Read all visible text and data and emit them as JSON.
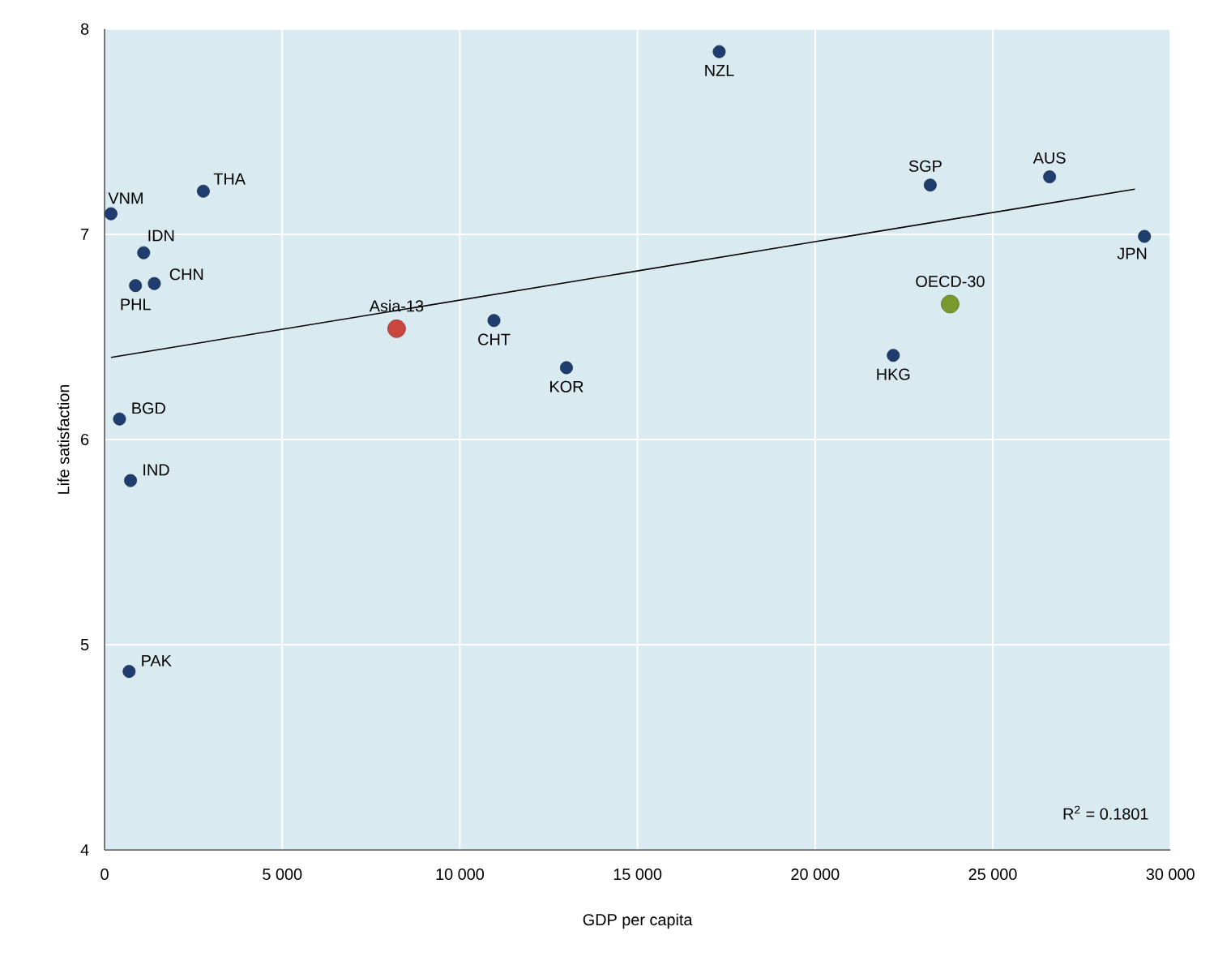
{
  "chart_data": {
    "type": "scatter",
    "xlabel": "GDP per capita",
    "ylabel": "Life satisfaction",
    "xlim": [
      0,
      30000
    ],
    "ylim": [
      4,
      8
    ],
    "xticks": [
      0,
      {
        "value": 5000,
        "label": "5 000"
      },
      {
        "value": 10000,
        "label": "10 000"
      },
      {
        "value": 15000,
        "label": "15 000"
      },
      {
        "value": 20000,
        "label": "20 000"
      },
      {
        "value": 25000,
        "label": "25 000"
      },
      {
        "value": 30000,
        "label": "30 000"
      }
    ],
    "yticks": [
      4,
      5,
      6,
      7,
      8
    ],
    "grid": true,
    "marker": "circle",
    "series": [
      {
        "color": "#1f3d6e",
        "x": [
          180,
          2780,
          1100,
          1400,
          870,
          420,
          730,
          690,
          10960,
          13000,
          17300,
          23240,
          26600,
          29270,
          22200
        ],
        "values": [
          7.1,
          7.21,
          6.91,
          6.76,
          6.75,
          6.1,
          5.8,
          4.87,
          6.58,
          6.35,
          7.89,
          7.24,
          7.28,
          6.99,
          6.41
        ]
      },
      {
        "name": "Asia-13",
        "color": "#c9463f",
        "x": [
          8220
        ],
        "values": [
          6.54
        ]
      },
      {
        "name": "OECD-30",
        "color": "#7a9a2e",
        "x": [
          23800
        ],
        "values": [
          6.66
        ]
      },
      {
        "type": "line",
        "color": "#000000",
        "marker": "none",
        "line_style": "solid",
        "x": [
          180,
          29000
        ],
        "values": [
          6.4,
          7.22
        ]
      }
    ],
    "annotations": [
      {
        "text": "VNM",
        "x": 180,
        "y": 7.1
      },
      {
        "text": "THA",
        "x": 2780,
        "y": 7.21
      },
      {
        "text": "IDN",
        "x": 1100,
        "y": 6.91
      },
      {
        "text": "CHN",
        "x": 1400,
        "y": 6.76
      },
      {
        "text": "PHL",
        "x": 870,
        "y": 6.75
      },
      {
        "text": "BGD",
        "x": 420,
        "y": 6.1
      },
      {
        "text": "IND",
        "x": 730,
        "y": 5.8
      },
      {
        "text": "PAK",
        "x": 690,
        "y": 4.87
      },
      {
        "text": "CHT",
        "x": 10960,
        "y": 6.58
      },
      {
        "text": "KOR",
        "x": 13000,
        "y": 6.35
      },
      {
        "text": "NZL",
        "x": 17300,
        "y": 7.89
      },
      {
        "text": "SGP",
        "x": 23240,
        "y": 7.24
      },
      {
        "text": "AUS",
        "x": 26600,
        "y": 7.28
      },
      {
        "text": "JPN",
        "x": 29270,
        "y": 6.99
      },
      {
        "text": "HKG",
        "x": 22200,
        "y": 6.41
      },
      "R$^{2}$ = 0.1801"
    ]
  }
}
